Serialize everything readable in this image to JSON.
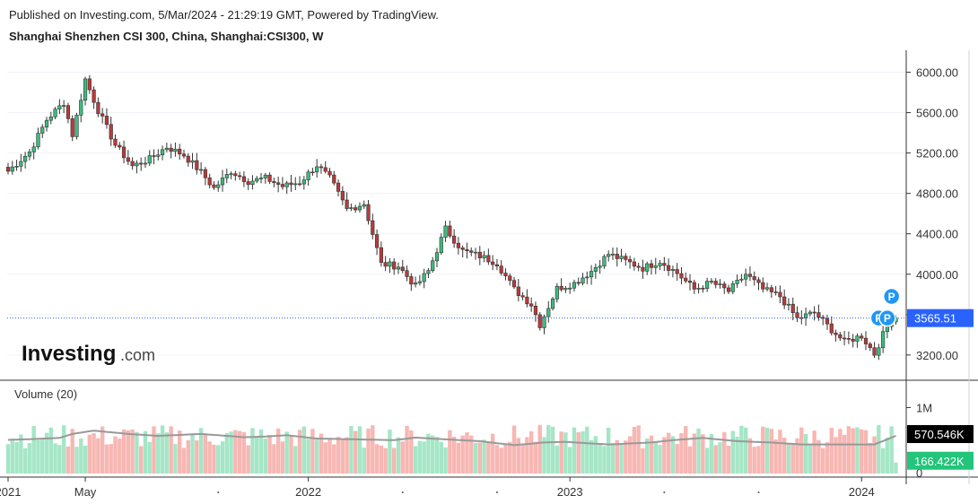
{
  "header": {
    "published": "Published on Investing.com, 5/Mar/2024 - 21:29:19 GMT, Powered by TradingView.",
    "instrument": "Shanghai Shenzhen CSI 300, China, Shanghai:CSI300, W"
  },
  "logo": {
    "bold": "Investing",
    "suffix": ".com"
  },
  "volume_label": "Volume (20)",
  "colors": {
    "up": "#26a69a",
    "down": "#ef5350",
    "up_fill": "#3dbb7e",
    "down_fill": "#b83b3b",
    "vol_up": "#a5e6c6",
    "vol_down": "#f7b7b3",
    "last_price_tag": "#2962ff",
    "ma_line": "#999999",
    "event_marker": "#2196f3"
  },
  "chart_data": {
    "type": "candlestick",
    "interval": "W",
    "price_axis": {
      "ticks": [
        3200,
        3600,
        4000,
        4400,
        4800,
        5200,
        5600,
        6000
      ],
      "tick_labels": [
        "3200.00",
        "3600.00",
        "4000.00",
        "4400.00",
        "4800.00",
        "5200.00",
        "5600.00",
        "6000.00"
      ],
      "range": [
        2950,
        6200
      ]
    },
    "volume_axis": {
      "ticks": [
        "1M"
      ],
      "range": [
        0,
        1400000
      ]
    },
    "time_axis": {
      "labels": [
        "2021",
        "May",
        "2022",
        "2023",
        "2024"
      ]
    },
    "last_price": "3565.51",
    "last_volume_ma": "570.546K",
    "last_volume": "166.422K",
    "event_markers": [
      "P",
      "P",
      "P"
    ],
    "series_anchors": [
      [
        0,
        5020
      ],
      [
        5,
        5210
      ],
      [
        9,
        5530
      ],
      [
        13,
        5700
      ],
      [
        15,
        5380
      ],
      [
        18,
        5930
      ],
      [
        21,
        5620
      ],
      [
        25,
        5280
      ],
      [
        29,
        5070
      ],
      [
        33,
        5140
      ],
      [
        37,
        5260
      ],
      [
        41,
        5180
      ],
      [
        45,
        5010
      ],
      [
        48,
        4850
      ],
      [
        52,
        5020
      ],
      [
        56,
        4920
      ],
      [
        60,
        4950
      ],
      [
        64,
        4870
      ],
      [
        68,
        4910
      ],
      [
        72,
        5080
      ],
      [
        75,
        4950
      ],
      [
        79,
        4640
      ],
      [
        83,
        4700
      ],
      [
        87,
        4100
      ],
      [
        91,
        4080
      ],
      [
        95,
        3880
      ],
      [
        98,
        4030
      ],
      [
        102,
        4450
      ],
      [
        106,
        4230
      ],
      [
        110,
        4180
      ],
      [
        114,
        4110
      ],
      [
        118,
        3850
      ],
      [
        122,
        3700
      ],
      [
        124,
        3500
      ],
      [
        128,
        3860
      ],
      [
        132,
        3910
      ],
      [
        136,
        4030
      ],
      [
        140,
        4200
      ],
      [
        144,
        4130
      ],
      [
        148,
        4060
      ],
      [
        152,
        4130
      ],
      [
        156,
        4010
      ],
      [
        160,
        3850
      ],
      [
        164,
        3920
      ],
      [
        168,
        3830
      ],
      [
        172,
        4000
      ],
      [
        176,
        3850
      ],
      [
        180,
        3780
      ],
      [
        184,
        3560
      ],
      [
        188,
        3620
      ],
      [
        192,
        3450
      ],
      [
        195,
        3330
      ],
      [
        199,
        3390
      ],
      [
        202,
        3210
      ],
      [
        204,
        3400
      ],
      [
        206,
        3560
      ],
      [
        207,
        3565.51
      ]
    ],
    "volume_ma_anchors": [
      [
        0,
        510000
      ],
      [
        5,
        520000
      ],
      [
        12,
        540000
      ],
      [
        15,
        600000
      ],
      [
        20,
        650000
      ],
      [
        28,
        600000
      ],
      [
        35,
        570000
      ],
      [
        45,
        600000
      ],
      [
        55,
        550000
      ],
      [
        60,
        560000
      ],
      [
        65,
        580000
      ],
      [
        72,
        530000
      ],
      [
        80,
        520000
      ],
      [
        90,
        505000
      ],
      [
        95,
        545000
      ],
      [
        100,
        525000
      ],
      [
        110,
        490000
      ],
      [
        118,
        430000
      ],
      [
        125,
        470000
      ],
      [
        130,
        480000
      ],
      [
        140,
        440000
      ],
      [
        150,
        470000
      ],
      [
        155,
        505000
      ],
      [
        162,
        540000
      ],
      [
        170,
        490000
      ],
      [
        178,
        470000
      ],
      [
        185,
        440000
      ],
      [
        195,
        440000
      ],
      [
        202,
        440000
      ],
      [
        207,
        570546
      ]
    ]
  }
}
